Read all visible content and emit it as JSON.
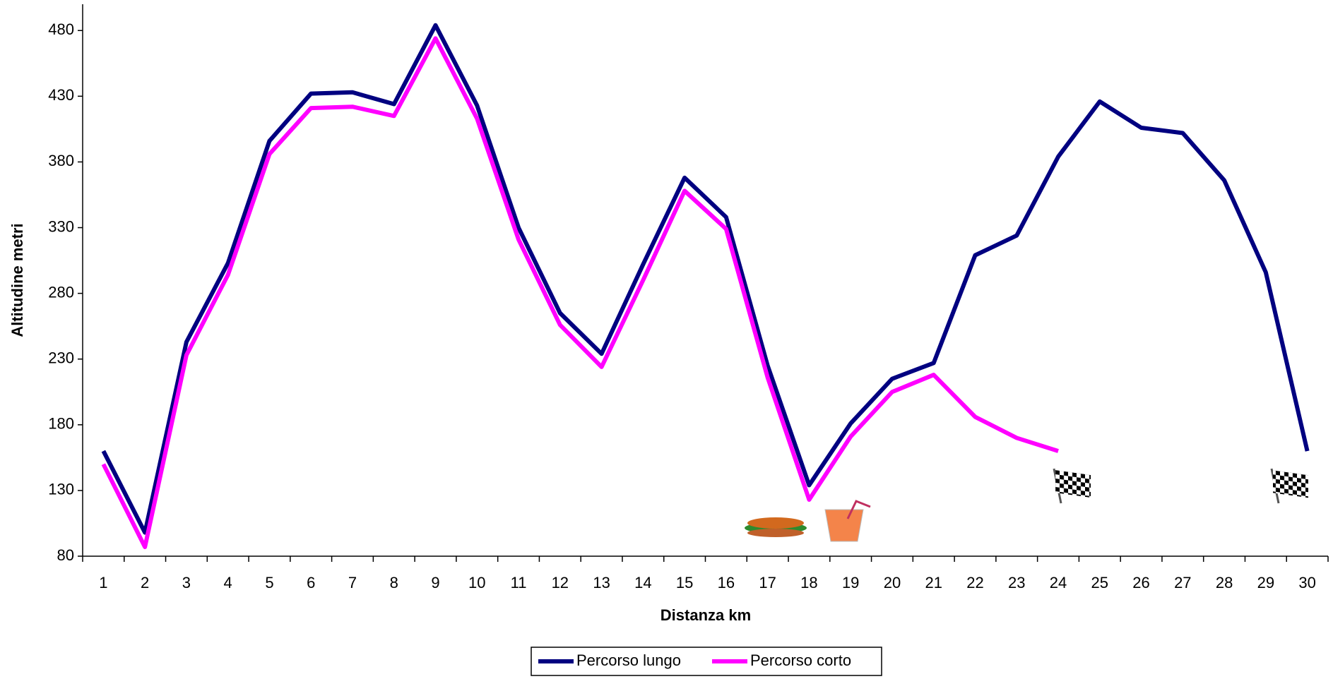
{
  "chart_data": {
    "type": "line",
    "x_label": "Distanza km",
    "y_label": "Altitudine metri",
    "categories": [
      1,
      2,
      3,
      4,
      5,
      6,
      7,
      8,
      9,
      10,
      11,
      12,
      13,
      14,
      15,
      16,
      17,
      18,
      19,
      20,
      21,
      22,
      23,
      24,
      25,
      26,
      27,
      28,
      29,
      30
    ],
    "series": [
      {
        "name": "Percorso lungo",
        "color": "#000080",
        "values": [
          160,
          98,
          243,
          303,
          396,
          432,
          433,
          424,
          484,
          423,
          330,
          265,
          234,
          302,
          368,
          338,
          225,
          134,
          181,
          215,
          227,
          309,
          324,
          384,
          426,
          406,
          402,
          366,
          296,
          160
        ]
      },
      {
        "name": "Percorso corto",
        "color": "#ff00ff",
        "values": [
          150,
          87,
          233,
          294,
          386,
          421,
          422,
          415,
          474,
          413,
          321,
          256,
          224,
          290,
          358,
          329,
          216,
          123,
          171,
          205,
          218,
          186,
          170,
          160,
          null,
          null,
          null,
          null,
          null,
          null
        ]
      }
    ],
    "ylim": [
      80,
      500
    ],
    "yticks": [
      80,
      130,
      180,
      230,
      280,
      330,
      380,
      430,
      480
    ],
    "legend": "bottom"
  }
}
